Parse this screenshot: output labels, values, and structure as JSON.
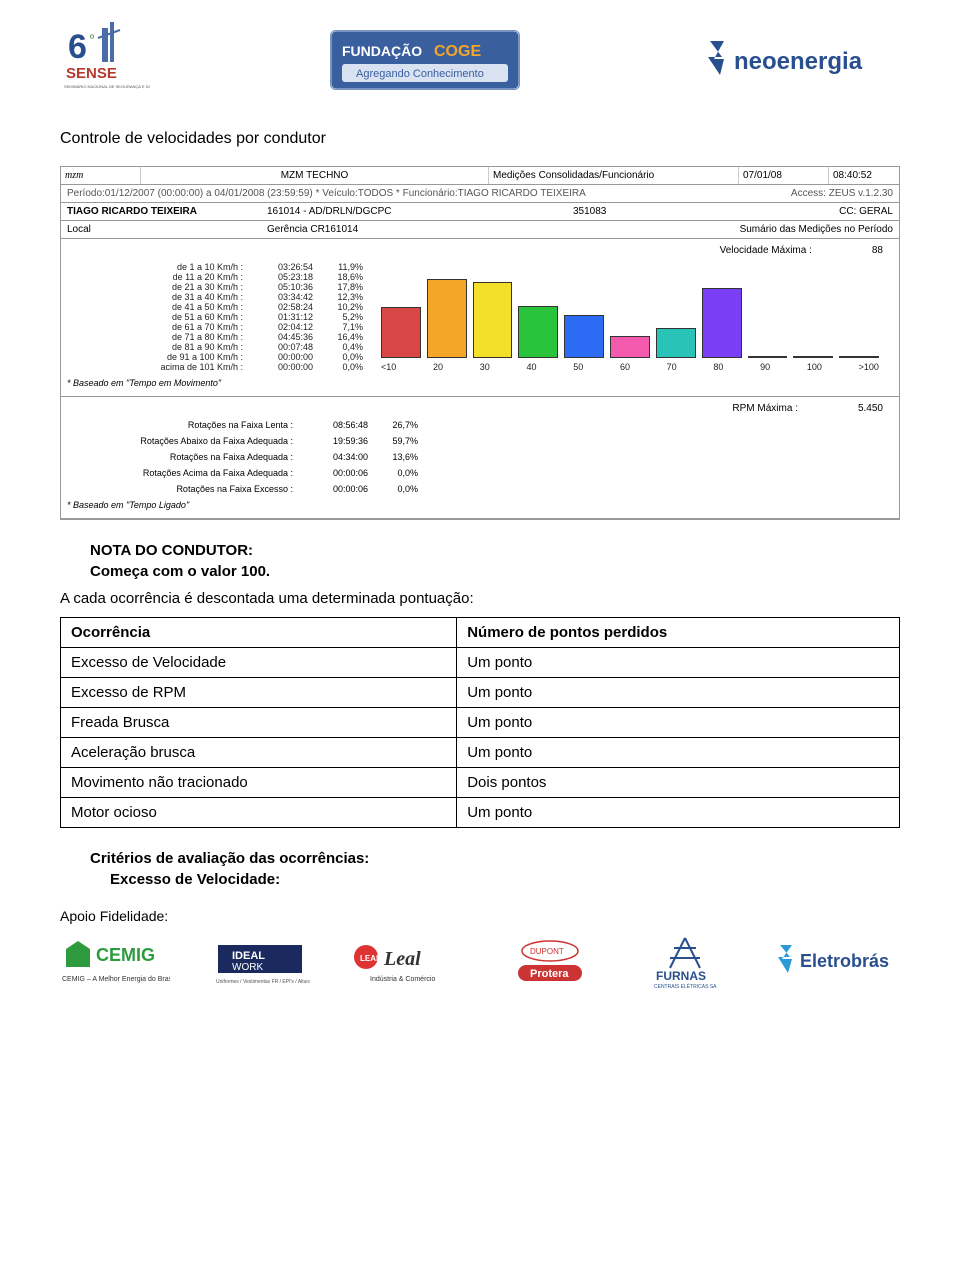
{
  "logos_top": {
    "sense": "6º SENSE",
    "coge_t": "FUNDAÇÃO COGE",
    "coge_s": "Agregando Conhecimento",
    "neo": "neoenergia"
  },
  "sectionTitle": "Controle de velocidades por condutor",
  "report": {
    "hdr": {
      "brand": "mzm",
      "title": "MZM TECHNO",
      "mid": "Medições Consolidadas/Funcionário",
      "date": "07/01/08",
      "time": "08:40:52"
    },
    "period_left": "Período:01/12/2007 (00:00:00) a 04/01/2008 (23:59:59) * Veículo:TODOS * Funcionário:TIAGO RICARDO TEIXEIRA",
    "period_right": "Access: ZEUS v.1.2.30",
    "id_name": "TIAGO RICARDO TEIXEIRA",
    "id_code": "161014 - AD/DRLN/DGCPC",
    "id_num": "351083",
    "id_cc": "CC: GERAL",
    "id_local": "Local",
    "id_ger": "Gerência CR161014",
    "id_sum": "Sumário das Medições no Período",
    "vel_max_label": "Velocidade Máxima :",
    "vel_max_value": "88",
    "speed_rows": [
      {
        "lbl": "de 1 a 10 Km/h :",
        "time": "03:26:54",
        "pct": "11,9%"
      },
      {
        "lbl": "de 11 a 20 Km/h :",
        "time": "05:23:18",
        "pct": "18,6%"
      },
      {
        "lbl": "de 21 a 30 Km/h :",
        "time": "05:10:36",
        "pct": "17,8%"
      },
      {
        "lbl": "de 31 a 40 Km/h :",
        "time": "03:34:42",
        "pct": "12,3%"
      },
      {
        "lbl": "de 41 a 50 Km/h :",
        "time": "02:58:24",
        "pct": "10,2%"
      },
      {
        "lbl": "de 51 a 60 Km/h :",
        "time": "01:31:12",
        "pct": "5,2%"
      },
      {
        "lbl": "de 61 a 70 Km/h :",
        "time": "02:04:12",
        "pct": "7,1%"
      },
      {
        "lbl": "de 71 a 80 Km/h :",
        "time": "04:45:36",
        "pct": "16,4%"
      },
      {
        "lbl": "de 81 a 90 Km/h :",
        "time": "00:07:48",
        "pct": "0,4%"
      },
      {
        "lbl": "de 91 a 100 Km/h :",
        "time": "00:00:00",
        "pct": "0,0%"
      },
      {
        "lbl": "acima de 101 Km/h :",
        "time": "00:00:00",
        "pct": "0,0%"
      }
    ],
    "chart": {
      "type": "bar",
      "x_labels": [
        "<10",
        "20",
        "30",
        "40",
        "50",
        "60",
        "70",
        "80",
        "90",
        "100",
        ">100"
      ],
      "heights_pct": [
        11.9,
        18.6,
        17.8,
        12.3,
        10.2,
        5.2,
        7.1,
        16.4,
        0.4,
        0,
        0
      ],
      "colors": [
        "#d94646",
        "#f4a629",
        "#f4e029",
        "#29c43b",
        "#2c6cf4",
        "#f45aad",
        "#29c4b7",
        "#7a3ff4",
        "#29c43b",
        "#555555",
        "#555555"
      ],
      "bg": "#ffffff",
      "border": "#444444",
      "max_scale": 20
    },
    "note1": "* Baseado em \"Tempo em Movimento\"",
    "rpm_max_label": "RPM Máxima :",
    "rpm_max_value": "5.450",
    "rot_rows": [
      {
        "lbl": "Rotações na Faixa Lenta :",
        "time": "08:56:48",
        "pct": "26,7%"
      },
      {
        "lbl": "Rotações Abaixo da Faixa Adequada :",
        "time": "19:59:36",
        "pct": "59,7%"
      },
      {
        "lbl": "Rotações na Faixa Adequada :",
        "time": "04:34:00",
        "pct": "13,6%"
      },
      {
        "lbl": "Rotações Acima da Faixa Adequada :",
        "time": "00:00:06",
        "pct": "0,0%"
      },
      {
        "lbl": "Rotações na Faixa Excesso :",
        "time": "00:00:06",
        "pct": "0,0%"
      }
    ],
    "note2": "* Baseado em \"Tempo Ligado\""
  },
  "nota": {
    "title": "NOTA DO CONDUTOR:",
    "sub": "Começa com o valor 100.",
    "line": "A cada ocorrência é descontada uma determinada pontuação:"
  },
  "occurrence_table": {
    "header": [
      "Ocorrência",
      "Número de pontos perdidos"
    ],
    "rows": [
      [
        "Excesso de Velocidade",
        "Um ponto"
      ],
      [
        "Excesso de RPM",
        "Um ponto"
      ],
      [
        "Freada Brusca",
        "Um ponto"
      ],
      [
        "Aceleração brusca",
        "Um ponto"
      ],
      [
        "Movimento não tracionado",
        "Dois pontos"
      ],
      [
        "Motor ocioso",
        "Um ponto"
      ]
    ]
  },
  "crit": {
    "title": "Critérios de avaliação das ocorrências:",
    "sub": "Excesso de Velocidade:"
  },
  "apoio": "Apoio Fidelidade:",
  "logos_bottom": [
    "CEMIG – A Melhor Energia do Brasil.",
    "IDEAL WORK",
    "Leal – Indústria & Comércio",
    "DUPONT Protera",
    "FURNAS – CENTRAIS ELÉTRICAS SA",
    "Eletrobrás"
  ]
}
